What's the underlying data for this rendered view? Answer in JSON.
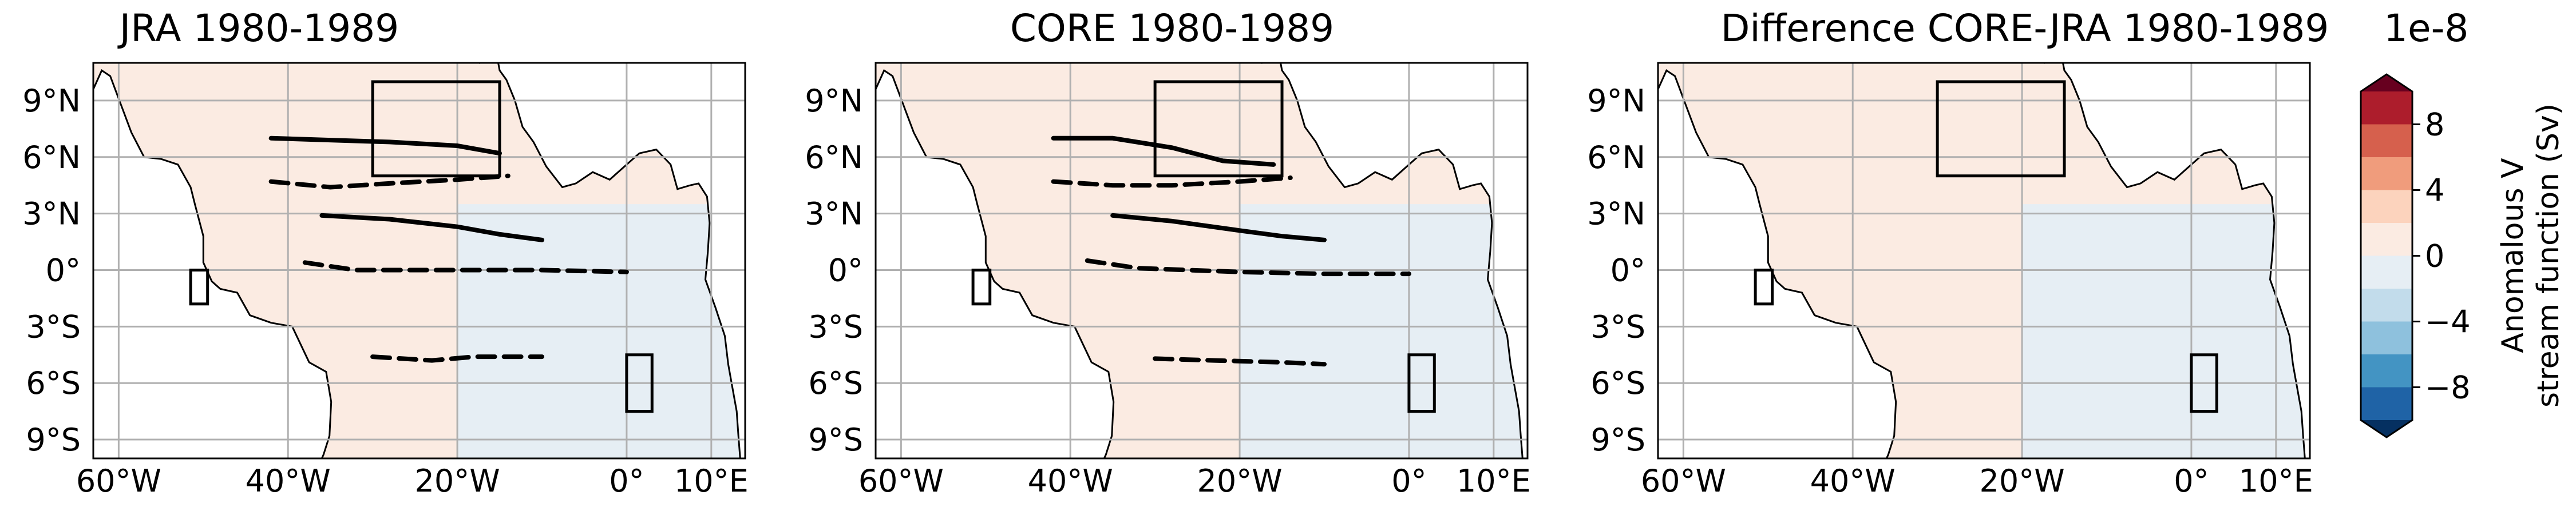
{
  "figure": {
    "colorbar": {
      "exponent_label": "1e-8",
      "label_line1": "Anomalous V",
      "label_line2": "stream function (Sv)",
      "ticks": [
        8,
        4,
        0,
        -4,
        -8
      ],
      "tick_labels": [
        "8",
        "4",
        "0",
        "−4",
        "−8"
      ],
      "range": [
        -10,
        10
      ],
      "levels": [
        {
          "from": 8,
          "to": 10,
          "color": "#ad1d2c"
        },
        {
          "from": 6,
          "to": 8,
          "color": "#d6604d"
        },
        {
          "from": 4,
          "to": 6,
          "color": "#f09c7c"
        },
        {
          "from": 2,
          "to": 4,
          "color": "#fcd3bd"
        },
        {
          "from": 0,
          "to": 2,
          "color": "#fbebe2"
        },
        {
          "from": -2,
          "to": 0,
          "color": "#e6eef4"
        },
        {
          "from": -4,
          "to": -2,
          "color": "#c2dceb"
        },
        {
          "from": -6,
          "to": -4,
          "color": "#8ec1dd"
        },
        {
          "from": -8,
          "to": -6,
          "color": "#4394c3"
        },
        {
          "from": -10,
          "to": -8,
          "color": "#1f63a6"
        }
      ],
      "extend_colors": {
        "max": "#67001f",
        "min": "#053061"
      }
    }
  },
  "chart_data": [
    {
      "type": "heatmap",
      "title": "JRA 1980-1989",
      "x_tick_labels": [
        "60°W",
        "40°W",
        "20°W",
        "0°",
        "10°E"
      ],
      "x_tick_values": [
        -60,
        -40,
        -20,
        0,
        10
      ],
      "y_tick_labels": [
        "9°N",
        "6°N",
        "3°N",
        "0°",
        "3°S",
        "6°S",
        "9°S"
      ],
      "y_tick_values": [
        9,
        6,
        3,
        0,
        -3,
        -6,
        -9
      ],
      "xlim": [
        -63,
        14
      ],
      "ylim": [
        -10,
        11
      ],
      "grid": true,
      "background_field": {
        "ocean_mean": "#fbebe2",
        "gulf_region": "#e6eef4"
      },
      "boxes": [
        {
          "lon": [
            -30,
            -15
          ],
          "lat": [
            5,
            10
          ]
        },
        {
          "lon": [
            0,
            3
          ],
          "lat": [
            -7.5,
            -4.5
          ]
        },
        {
          "lon": [
            -51.5,
            -49.5
          ],
          "lat": [
            -1.8,
            0
          ]
        }
      ],
      "contours": [
        {
          "style": "solid",
          "points": [
            [
              -42,
              7.0
            ],
            [
              -35,
              6.9
            ],
            [
              -28,
              6.8
            ],
            [
              -20,
              6.6
            ],
            [
              -15,
              6.2
            ]
          ]
        },
        {
          "style": "dashed",
          "points": [
            [
              -42,
              4.7
            ],
            [
              -35,
              4.4
            ],
            [
              -28,
              4.6
            ],
            [
              -20,
              4.8
            ],
            [
              -14,
              5.0
            ]
          ]
        },
        {
          "style": "solid",
          "points": [
            [
              -36,
              2.9
            ],
            [
              -28,
              2.7
            ],
            [
              -20,
              2.3
            ],
            [
              -15,
              1.9
            ],
            [
              -10,
              1.6
            ]
          ]
        },
        {
          "style": "dashed",
          "points": [
            [
              -38,
              0.4
            ],
            [
              -32,
              0.0
            ],
            [
              -20,
              0.0
            ],
            [
              -10,
              0.0
            ],
            [
              0,
              -0.1
            ]
          ]
        },
        {
          "style": "dashed",
          "points": [
            [
              -30,
              -4.6
            ],
            [
              -23,
              -4.8
            ],
            [
              -18,
              -4.6
            ],
            [
              -10,
              -4.6
            ]
          ]
        }
      ]
    },
    {
      "type": "heatmap",
      "title": "CORE 1980-1989",
      "x_tick_labels": [
        "60°W",
        "40°W",
        "20°W",
        "0°",
        "10°E"
      ],
      "x_tick_values": [
        -60,
        -40,
        -20,
        0,
        10
      ],
      "y_tick_labels": [
        "9°N",
        "6°N",
        "3°N",
        "0°",
        "3°S",
        "6°S",
        "9°S"
      ],
      "y_tick_values": [
        9,
        6,
        3,
        0,
        -3,
        -6,
        -9
      ],
      "xlim": [
        -63,
        14
      ],
      "ylim": [
        -10,
        11
      ],
      "grid": true,
      "background_field": {
        "ocean_mean": "#fbebe2",
        "gulf_region": "#e6eef4"
      },
      "boxes": [
        {
          "lon": [
            -30,
            -15
          ],
          "lat": [
            5,
            10
          ]
        },
        {
          "lon": [
            0,
            3
          ],
          "lat": [
            -7.5,
            -4.5
          ]
        },
        {
          "lon": [
            -51.5,
            -49.5
          ],
          "lat": [
            -1.8,
            0
          ]
        }
      ],
      "contours": [
        {
          "style": "solid",
          "points": [
            [
              -42,
              7.0
            ],
            [
              -35,
              7.0
            ],
            [
              -28,
              6.5
            ],
            [
              -22,
              5.8
            ],
            [
              -16,
              5.6
            ]
          ]
        },
        {
          "style": "dashed",
          "points": [
            [
              -42,
              4.7
            ],
            [
              -35,
              4.5
            ],
            [
              -28,
              4.5
            ],
            [
              -20,
              4.7
            ],
            [
              -14,
              4.9
            ]
          ]
        },
        {
          "style": "solid",
          "points": [
            [
              -35,
              2.9
            ],
            [
              -28,
              2.6
            ],
            [
              -20,
              2.1
            ],
            [
              -15,
              1.8
            ],
            [
              -10,
              1.6
            ]
          ]
        },
        {
          "style": "dashed",
          "points": [
            [
              -38,
              0.5
            ],
            [
              -32,
              0.1
            ],
            [
              -20,
              -0.1
            ],
            [
              -10,
              -0.2
            ],
            [
              0,
              -0.2
            ]
          ]
        },
        {
          "style": "dashed",
          "points": [
            [
              -30,
              -4.7
            ],
            [
              -23,
              -4.8
            ],
            [
              -15,
              -4.9
            ],
            [
              -10,
              -5.0
            ]
          ]
        }
      ]
    },
    {
      "type": "heatmap",
      "title": "Difference CORE-JRA 1980-1989",
      "x_tick_labels": [
        "60°W",
        "40°W",
        "20°W",
        "0°",
        "10°E"
      ],
      "x_tick_values": [
        -60,
        -40,
        -20,
        0,
        10
      ],
      "y_tick_labels": [
        "9°N",
        "6°N",
        "3°N",
        "0°",
        "3°S",
        "6°S",
        "9°S"
      ],
      "y_tick_values": [
        9,
        6,
        3,
        0,
        -3,
        -6,
        -9
      ],
      "xlim": [
        -63,
        14
      ],
      "ylim": [
        -10,
        11
      ],
      "grid": true,
      "background_field": {
        "ocean_mean": "#fbebe2",
        "gulf_region": "#e6eef4"
      },
      "boxes": [
        {
          "lon": [
            -30,
            -15
          ],
          "lat": [
            5,
            10
          ]
        },
        {
          "lon": [
            0,
            3
          ],
          "lat": [
            -7.5,
            -4.5
          ]
        },
        {
          "lon": [
            -51.5,
            -49.5
          ],
          "lat": [
            -1.8,
            0
          ]
        }
      ],
      "contours": []
    }
  ]
}
